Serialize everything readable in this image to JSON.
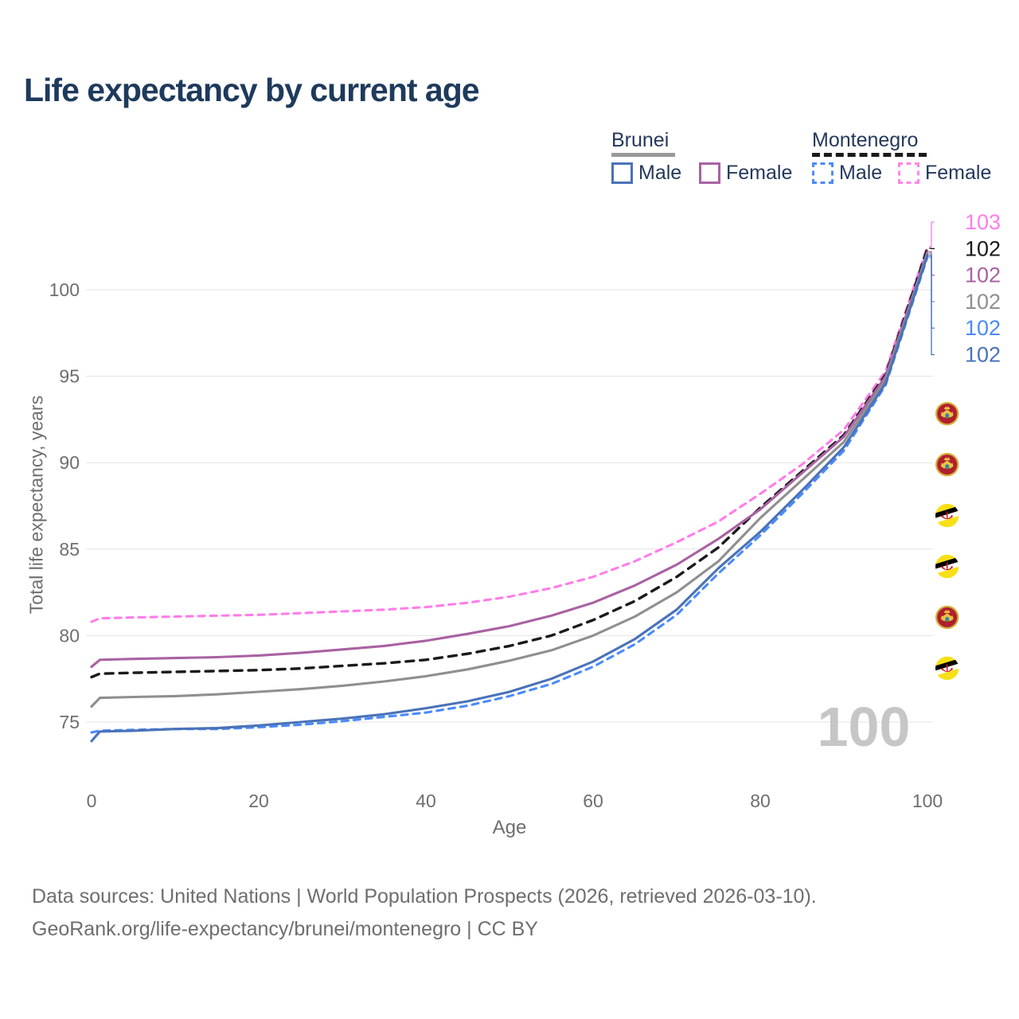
{
  "title": "Life expectancy by current age",
  "legend": {
    "groups": [
      {
        "label": "Brunei",
        "underline_color": "#999999",
        "underline_style": "solid"
      },
      {
        "label": "Montenegro",
        "underline_color": "#1a1a1a",
        "underline_style": "dashed"
      }
    ],
    "entries": [
      {
        "label": "Male",
        "color": "#4a72b8",
        "dashed": false
      },
      {
        "label": "Female",
        "color": "#a962a2",
        "dashed": false
      },
      {
        "label": "Male",
        "color": "#4b8af9",
        "dashed": true
      },
      {
        "label": "Female",
        "color": "#ff85e8",
        "dashed": true
      }
    ]
  },
  "chart_data": {
    "type": "line",
    "title": "Life expectancy by current age",
    "xlabel": "Age",
    "ylabel": "Total life expectancy, years",
    "x_ticks": [
      0,
      20,
      40,
      60,
      80,
      100
    ],
    "y_ticks": [
      75,
      80,
      85,
      90,
      95,
      100
    ],
    "xlim": [
      0,
      100
    ],
    "ylim": [
      73.5,
      103
    ],
    "grid": true,
    "x": [
      0,
      1,
      5,
      10,
      15,
      20,
      25,
      30,
      35,
      40,
      45,
      50,
      55,
      60,
      65,
      70,
      75,
      80,
      85,
      90,
      95,
      100
    ],
    "series": [
      {
        "name": "Montenegro Female",
        "country": "montenegro",
        "sex": "female",
        "color": "#ff7de9",
        "dashed": true,
        "values": [
          80.8,
          81.0,
          81.05,
          81.1,
          81.15,
          81.2,
          81.3,
          81.4,
          81.5,
          81.65,
          81.9,
          82.25,
          82.75,
          83.4,
          84.3,
          85.4,
          86.6,
          88.2,
          89.9,
          91.9,
          95.3,
          102.5
        ],
        "end_label": "103"
      },
      {
        "name": "Montenegro",
        "country": "montenegro",
        "sex": "both",
        "color": "#1a1a1a",
        "dashed": true,
        "values": [
          77.6,
          77.8,
          77.85,
          77.9,
          77.95,
          78.0,
          78.1,
          78.25,
          78.4,
          78.6,
          78.95,
          79.4,
          80.0,
          80.9,
          82.0,
          83.4,
          85.1,
          87.4,
          89.5,
          91.6,
          95.1,
          102.4
        ],
        "end_label": "102"
      },
      {
        "name": "Brunei Female",
        "country": "brunei",
        "sex": "female",
        "color": "#a962a2",
        "dashed": false,
        "values": [
          78.2,
          78.6,
          78.65,
          78.7,
          78.75,
          78.85,
          79.0,
          79.2,
          79.4,
          79.7,
          80.1,
          80.55,
          81.15,
          81.9,
          82.9,
          84.1,
          85.6,
          87.3,
          89.4,
          91.5,
          95.0,
          102.2
        ],
        "end_label": "102"
      },
      {
        "name": "Brunei",
        "country": "brunei",
        "sex": "both",
        "color": "#8f8f8f",
        "dashed": false,
        "values": [
          75.9,
          76.4,
          76.45,
          76.5,
          76.6,
          76.75,
          76.9,
          77.1,
          77.35,
          77.65,
          78.05,
          78.55,
          79.15,
          80.0,
          81.1,
          82.5,
          84.3,
          86.8,
          89.0,
          91.2,
          94.8,
          102.1
        ],
        "end_label": "102"
      },
      {
        "name": "Montenegro Male",
        "country": "montenegro",
        "sex": "male",
        "color": "#4b8af9",
        "dashed": true,
        "values": [
          74.4,
          74.5,
          74.55,
          74.6,
          74.6,
          74.7,
          74.85,
          75.05,
          75.3,
          75.55,
          75.95,
          76.5,
          77.2,
          78.2,
          79.5,
          81.2,
          83.6,
          85.8,
          88.2,
          90.7,
          94.5,
          101.9
        ],
        "end_label": "102"
      },
      {
        "name": "Brunei Male",
        "country": "brunei",
        "sex": "male",
        "color": "#4a72b8",
        "dashed": false,
        "values": [
          73.9,
          74.45,
          74.5,
          74.6,
          74.65,
          74.8,
          75.0,
          75.2,
          75.45,
          75.8,
          76.2,
          76.75,
          77.5,
          78.5,
          79.8,
          81.5,
          83.9,
          86.0,
          88.4,
          90.9,
          94.6,
          102.0
        ],
        "end_label": "102"
      }
    ],
    "legend_position": "top-right"
  },
  "watermark": "100",
  "footer": {
    "line1": "Data sources: United Nations | World Population Prospects (2026, retrieved 2026-03-10).",
    "line2": "GeoRank.org/life-expectancy/brunei/montenegro | CC BY"
  }
}
